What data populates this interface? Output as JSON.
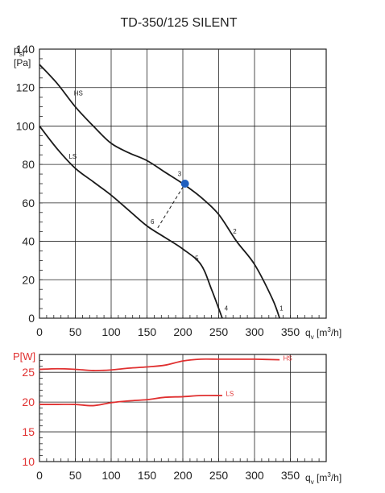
{
  "title": "TD-350/125 SILENT",
  "chart_data": [
    {
      "type": "line",
      "ylabel_main": "p",
      "ylabel_sub": "sf",
      "yunit": "[Pa]",
      "xlabel_main": "q",
      "xlabel_sub": "v",
      "xunit_pre": "[m",
      "xunit_sup": "3",
      "xunit_post": "/h]",
      "xlim": [
        0,
        400
      ],
      "ylim": [
        0,
        140
      ],
      "xticks": [
        0,
        50,
        100,
        150,
        200,
        250,
        300,
        350
      ],
      "yticks": [
        0,
        20,
        40,
        60,
        80,
        100,
        120,
        140
      ],
      "grid": true,
      "series": [
        {
          "name": "HS",
          "x": [
            0,
            25,
            50,
            75,
            100,
            125,
            150,
            175,
            200,
            225,
            250,
            275,
            300,
            325,
            335
          ],
          "y": [
            132,
            122,
            110,
            100,
            91,
            86,
            82,
            76,
            70,
            63,
            54,
            40,
            28,
            10,
            0
          ]
        },
        {
          "name": "LS",
          "x": [
            0,
            25,
            50,
            75,
            100,
            125,
            150,
            175,
            200,
            225,
            240,
            255
          ],
          "y": [
            100,
            88,
            78,
            71,
            64,
            56,
            48,
            42,
            36,
            28,
            15,
            0
          ]
        },
        {
          "name": "",
          "dashed": true,
          "x": [
            165,
            203
          ],
          "y": [
            47,
            70
          ]
        }
      ],
      "point_labels": [
        {
          "text": "HS",
          "x": 48,
          "y": 116
        },
        {
          "text": "LS",
          "x": 41,
          "y": 83
        },
        {
          "text": "1",
          "x": 335,
          "y": 4
        },
        {
          "text": "2",
          "x": 270,
          "y": 44
        },
        {
          "text": "3",
          "x": 193,
          "y": 74
        },
        {
          "text": "4",
          "x": 258,
          "y": 4
        },
        {
          "text": "5",
          "x": 217,
          "y": 30
        },
        {
          "text": "6",
          "x": 155,
          "y": 49
        }
      ],
      "operating_point": {
        "x": 203,
        "y": 70,
        "color": "#1f5fbf"
      }
    },
    {
      "type": "line",
      "ylabel": "P[W]",
      "xlabel_main": "q",
      "xlabel_sub": "v",
      "xunit_pre": "[m",
      "xunit_sup": "3",
      "xunit_post": "/h]",
      "xlim": [
        0,
        400
      ],
      "ylim": [
        10,
        28
      ],
      "xticks": [
        0,
        50,
        100,
        150,
        200,
        250,
        300,
        350
      ],
      "yticks": [
        10,
        15,
        20,
        25
      ],
      "grid": true,
      "color": "#e03030",
      "series": [
        {
          "name": "HS",
          "x": [
            0,
            25,
            50,
            75,
            100,
            125,
            150,
            175,
            200,
            225,
            250,
            275,
            300,
            335
          ],
          "y": [
            25.5,
            25.6,
            25.5,
            25.3,
            25.4,
            25.7,
            25.9,
            26.2,
            26.9,
            27.2,
            27.2,
            27.2,
            27.2,
            27.1
          ]
        },
        {
          "name": "LS",
          "x": [
            0,
            25,
            50,
            75,
            100,
            125,
            150,
            175,
            200,
            225,
            255
          ],
          "y": [
            19.6,
            19.6,
            19.6,
            19.4,
            19.9,
            20.2,
            20.4,
            20.8,
            20.9,
            21.1,
            21.1
          ]
        }
      ],
      "point_labels": [
        {
          "text": "HS",
          "x": 340,
          "y": 27.0
        },
        {
          "text": "LS",
          "x": 260,
          "y": 21.0
        }
      ]
    }
  ]
}
